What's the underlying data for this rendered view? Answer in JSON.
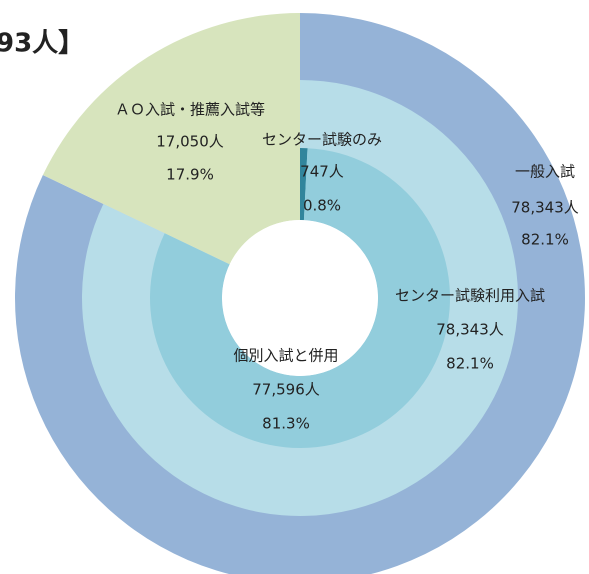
{
  "chart_data": {
    "type": "sunburst",
    "title": "93人】",
    "rings": [
      {
        "segments": [
          {
            "name": "一般入試",
            "value": 78343,
            "value_label": "78,343人",
            "percent": 82.1,
            "percent_label": "82.1%",
            "color": "#95b3d7"
          },
          {
            "name": "ＡＯ入試・推薦入試等",
            "value": 17050,
            "value_label": "17,050人",
            "percent": 17.9,
            "percent_label": "17.9%",
            "color": "#d7e4bd"
          }
        ]
      },
      {
        "segments": [
          {
            "name": "センター試験利用入試",
            "value": 78343,
            "value_label": "78,343人",
            "percent": 82.1,
            "percent_label": "82.1%",
            "color": "#b7dde8"
          }
        ]
      },
      {
        "segments": [
          {
            "name": "センター試験のみ",
            "value": 747,
            "value_label": "747人",
            "percent": 0.8,
            "percent_label": "0.8%",
            "color": "#31859c"
          },
          {
            "name": "個別入試と併用",
            "value": 77596,
            "value_label": "77,596人",
            "percent": 81.3,
            "percent_label": "81.3%",
            "color": "#92cddc"
          }
        ]
      }
    ]
  }
}
